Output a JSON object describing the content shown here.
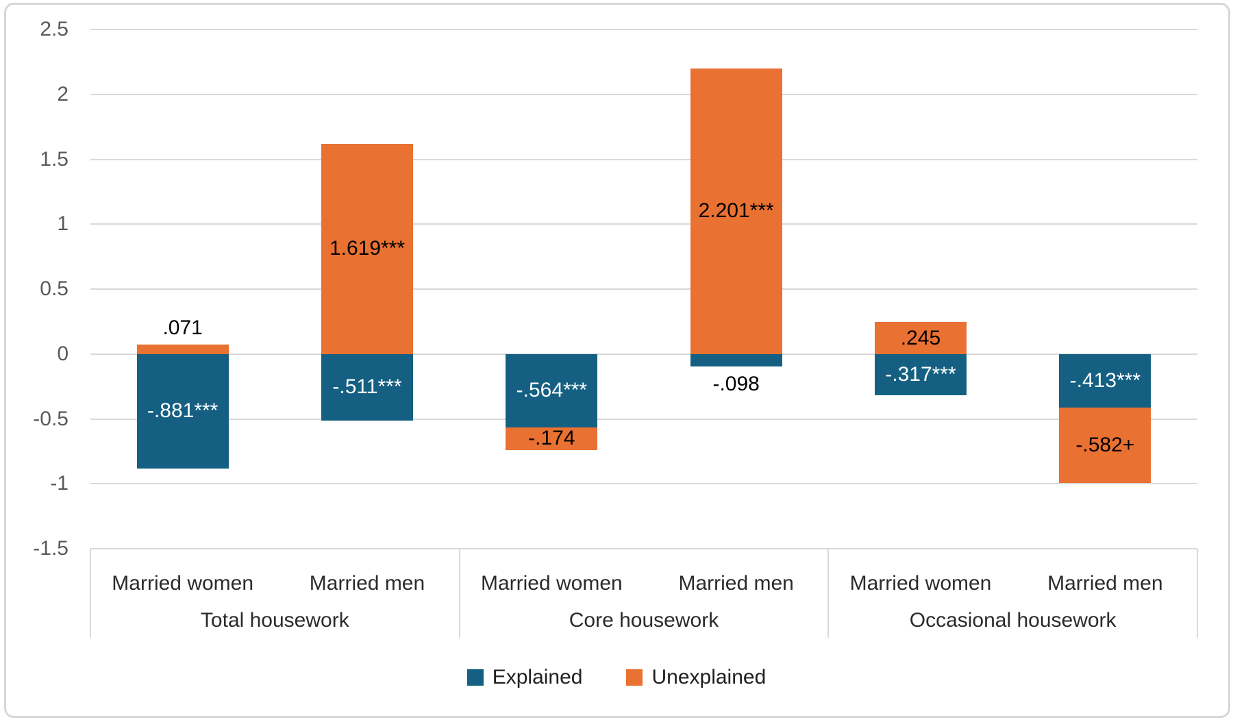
{
  "chart_data": {
    "type": "bar",
    "stacked": true,
    "title": "",
    "xlabel": "",
    "ylabel": "",
    "ylim": [
      -1.5,
      2.5
    ],
    "ytick_labels": [
      "2.5",
      "2",
      "1.5",
      "1",
      "0.5",
      "0",
      "-0.5",
      "-1",
      "-1.5"
    ],
    "grid": true,
    "legend_position": "bottom",
    "series": [
      {
        "name": "Explained",
        "color": "#156082"
      },
      {
        "name": "Unexplained",
        "color": "#E97132"
      }
    ],
    "groups": [
      {
        "label": "Total housework",
        "bars": [
          {
            "category": "Married women",
            "segments": [
              {
                "series": "Explained",
                "value": -0.881,
                "label": "-.881***",
                "label_placement": "inside",
                "label_color": "#FFFFFF"
              },
              {
                "series": "Unexplained",
                "value": 0.071,
                "label": ".071",
                "label_placement": "outside-above",
                "label_color": "#000000"
              }
            ]
          },
          {
            "category": "Married men",
            "segments": [
              {
                "series": "Explained",
                "value": -0.511,
                "label": "-.511***",
                "label_placement": "inside",
                "label_color": "#FFFFFF"
              },
              {
                "series": "Unexplained",
                "value": 1.619,
                "label": "1.619***",
                "label_placement": "inside",
                "label_color": "#000000"
              }
            ]
          }
        ]
      },
      {
        "label": "Core housework",
        "bars": [
          {
            "category": "Married women",
            "segments": [
              {
                "series": "Explained",
                "value": -0.564,
                "label": "-.564***",
                "label_placement": "inside",
                "label_color": "#FFFFFF"
              },
              {
                "series": "Unexplained",
                "value": -0.174,
                "label": "-.174",
                "label_placement": "inside",
                "label_color": "#000000"
              }
            ]
          },
          {
            "category": "Married men",
            "segments": [
              {
                "series": "Explained",
                "value": -0.098,
                "label": "-.098",
                "label_placement": "outside-below",
                "label_color": "#000000"
              },
              {
                "series": "Unexplained",
                "value": 2.201,
                "label": "2.201***",
                "label_placement": "inside",
                "label_color": "#000000"
              }
            ]
          }
        ]
      },
      {
        "label": "Occasional housework",
        "bars": [
          {
            "category": "Married women",
            "segments": [
              {
                "series": "Explained",
                "value": -0.317,
                "label": "-.317***",
                "label_placement": "inside",
                "label_color": "#FFFFFF"
              },
              {
                "series": "Unexplained",
                "value": 0.245,
                "label": ".245",
                "label_placement": "inside",
                "label_color": "#000000"
              }
            ]
          },
          {
            "category": "Married men",
            "segments": [
              {
                "series": "Explained",
                "value": -0.413,
                "label": "-.413***",
                "label_placement": "inside",
                "label_color": "#FFFFFF"
              },
              {
                "series": "Unexplained",
                "value": -0.582,
                "label": "-.582+",
                "label_placement": "inside",
                "label_color": "#000000"
              }
            ]
          }
        ]
      }
    ]
  },
  "legend": {
    "items": [
      {
        "label": "Explained"
      },
      {
        "label": "Unexplained"
      }
    ]
  },
  "colors": {
    "explained": "#156082",
    "unexplained": "#E97132",
    "gridline": "#D9D9D9",
    "axis_line": "#D9D9D9",
    "tick_label": "#595959",
    "category_label": "#2B2B2B",
    "data_label_dark": "#000000",
    "data_label_light": "#FFFFFF",
    "frame_border": "#D7D7D7",
    "background": "#FFFFFF"
  }
}
